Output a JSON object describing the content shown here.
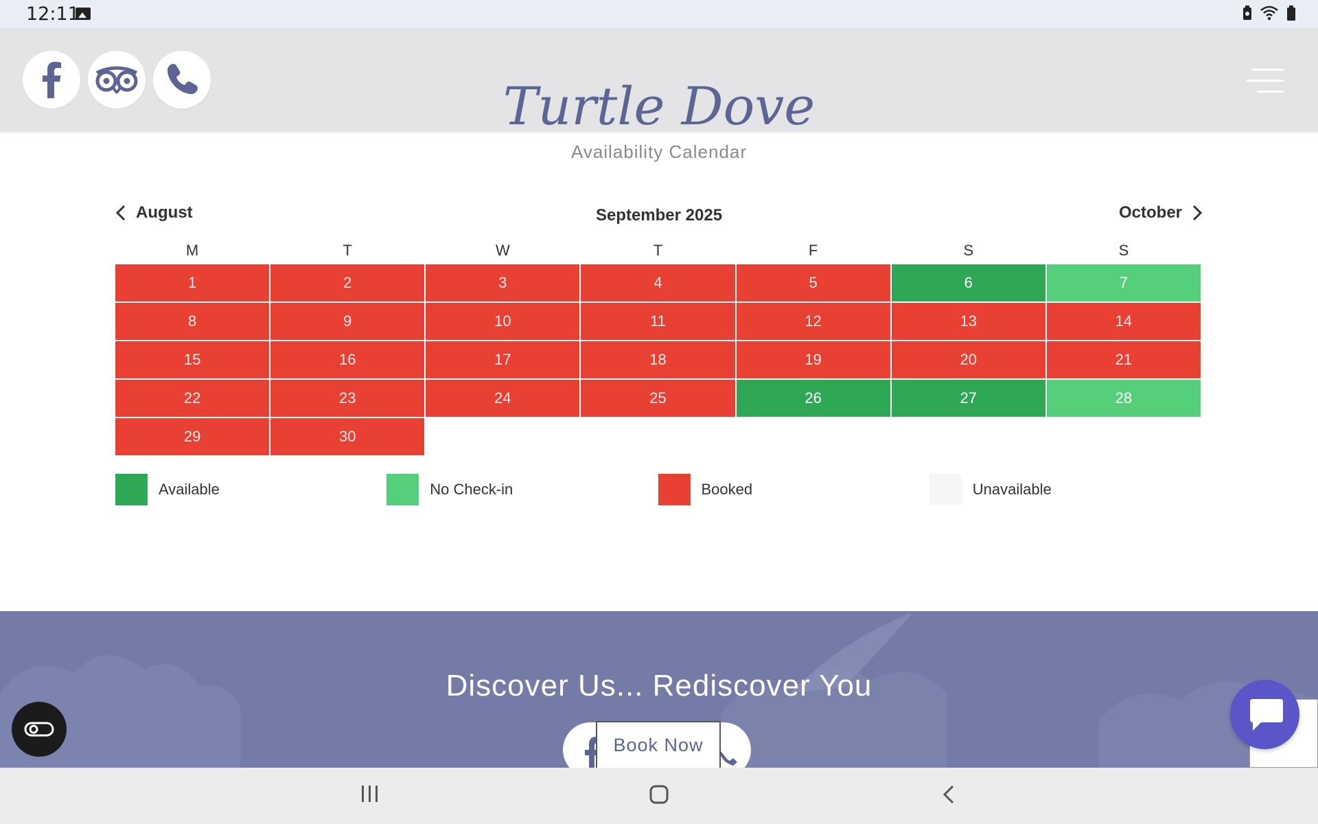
{
  "status_bar": {
    "time": "12:11",
    "icons": [
      "image-icon",
      "battery-saver-icon",
      "wifi-icon",
      "battery-icon"
    ]
  },
  "header": {
    "brand": "Turtle Dove",
    "social_icons": [
      "facebook-icon",
      "tripadvisor-icon",
      "phone-icon"
    ],
    "menu_icon": "hamburger-menu-icon"
  },
  "calendar": {
    "subtitle": "Availability Calendar",
    "prev_month": "August",
    "next_month": "October",
    "current_month": "September 2025",
    "weekdays": [
      "M",
      "T",
      "W",
      "T",
      "F",
      "S",
      "S"
    ],
    "days": [
      {
        "num": "1",
        "status": "booked"
      },
      {
        "num": "2",
        "status": "booked"
      },
      {
        "num": "3",
        "status": "booked"
      },
      {
        "num": "4",
        "status": "booked"
      },
      {
        "num": "5",
        "status": "booked"
      },
      {
        "num": "6",
        "status": "available"
      },
      {
        "num": "7",
        "status": "nocheckin"
      },
      {
        "num": "8",
        "status": "booked"
      },
      {
        "num": "9",
        "status": "booked"
      },
      {
        "num": "10",
        "status": "booked"
      },
      {
        "num": "11",
        "status": "booked"
      },
      {
        "num": "12",
        "status": "booked"
      },
      {
        "num": "13",
        "status": "booked"
      },
      {
        "num": "14",
        "status": "booked"
      },
      {
        "num": "15",
        "status": "booked"
      },
      {
        "num": "16",
        "status": "booked"
      },
      {
        "num": "17",
        "status": "booked"
      },
      {
        "num": "18",
        "status": "booked"
      },
      {
        "num": "19",
        "status": "booked"
      },
      {
        "num": "20",
        "status": "booked"
      },
      {
        "num": "21",
        "status": "booked"
      },
      {
        "num": "22",
        "status": "booked"
      },
      {
        "num": "23",
        "status": "booked"
      },
      {
        "num": "24",
        "status": "booked"
      },
      {
        "num": "25",
        "status": "booked"
      },
      {
        "num": "26",
        "status": "available"
      },
      {
        "num": "27",
        "status": "available"
      },
      {
        "num": "28",
        "status": "nocheckin"
      },
      {
        "num": "29",
        "status": "booked"
      },
      {
        "num": "30",
        "status": "booked"
      }
    ],
    "legend": [
      {
        "label": "Available",
        "color": "#2ea854"
      },
      {
        "label": "No Check-in",
        "color": "#55cf79"
      },
      {
        "label": "Booked",
        "color": "#e84033"
      },
      {
        "label": "Unavailable",
        "color": "#f6f6f6"
      }
    ]
  },
  "banner": {
    "title": "Discover Us... Rediscover You",
    "book_label": "Book Now"
  },
  "colors": {
    "accent": "#5d6595",
    "banner_bg": "#747ba7",
    "booked": "#e84033",
    "available": "#2ea854",
    "no_checkin": "#55cf79",
    "chat": "#5a55c8"
  },
  "floating": {
    "cc_icon": "accessibility-toggle-icon",
    "chat_icon": "chat-bubble-icon"
  },
  "system_nav": {
    "icons": [
      "recent-apps-icon",
      "home-icon",
      "back-icon"
    ]
  }
}
